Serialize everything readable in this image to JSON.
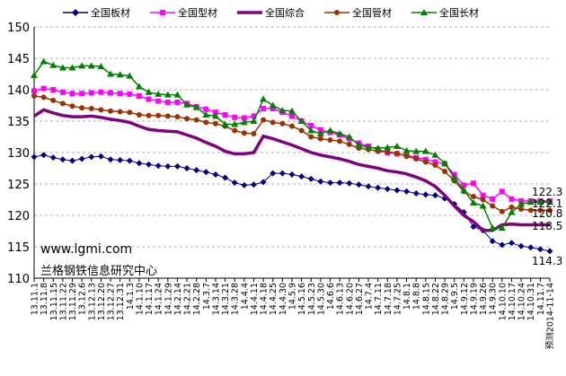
{
  "chart_data": {
    "type": "line",
    "title": "",
    "xlabel": "",
    "ylabel": "",
    "ylim": [
      110,
      150
    ],
    "yticks": [
      110,
      115,
      120,
      125,
      130,
      135,
      140,
      145,
      150
    ],
    "grid": "horizontal dashed",
    "legend": "top",
    "categories": [
      "13.11.1",
      "13.11.8",
      "13.11.15",
      "13.11.22",
      "13.11.29",
      "13.12.6",
      "13.12.13",
      "13.12.20",
      "13.12.27",
      "13.12.31",
      "14.1.3",
      "14.1.10",
      "14.1.17",
      "14.1.24",
      "14.1.29",
      "14.2.14",
      "14.2.21",
      "14.2.28",
      "14.3.7",
      "14.3.14",
      "14.3.21",
      "14.3.28",
      "14.4.4",
      "14.4.11",
      "14.4.18",
      "14.4.25",
      "14.4.30",
      "14.5.9",
      "14.5.16",
      "14.5.23",
      "14.5.30",
      "14.6.6",
      "14.6.13",
      "14.6.20",
      "14.6.27",
      "14.7.4",
      "14.7.11",
      "14.7.18",
      "14.7.25",
      "14.8.1",
      "14.8.8",
      "14.8.15",
      "14.8.22",
      "14.8.29",
      "14.9.5",
      "14.9.12",
      "14.9.19",
      "14.9.26",
      "14.9.30",
      "14.10.10",
      "14.10.17",
      "14.10.24",
      "14.10.31",
      "14.11.7",
      "预测2014-11-14"
    ],
    "series": [
      {
        "name": "全国板材",
        "color": "#000080",
        "marker": "diamond",
        "end_label": "114.3",
        "values": [
          129.3,
          129.6,
          129.2,
          128.9,
          128.7,
          129.0,
          129.3,
          129.4,
          128.9,
          128.8,
          128.7,
          128.3,
          128.1,
          127.9,
          127.8,
          127.8,
          127.5,
          127.2,
          126.9,
          126.5,
          126.0,
          125.2,
          124.8,
          124.9,
          125.3,
          126.7,
          126.7,
          126.5,
          126.2,
          125.8,
          125.4,
          125.2,
          125.2,
          125.1,
          124.9,
          124.6,
          124.4,
          124.2,
          124.0,
          123.8,
          123.5,
          123.3,
          123.2,
          122.7,
          121.8,
          120.5,
          118.2,
          117.6,
          115.9,
          115.3,
          115.6,
          115.1,
          114.9,
          114.6,
          114.3
        ]
      },
      {
        "name": "全国型材",
        "color": "#ff00ff",
        "marker": "square",
        "end_label": "122.3",
        "values": [
          139.8,
          140.2,
          140.0,
          139.6,
          139.4,
          139.4,
          139.5,
          139.6,
          139.5,
          139.4,
          139.3,
          139.0,
          138.5,
          138.2,
          138.0,
          138.0,
          137.8,
          137.3,
          136.9,
          136.4,
          136.0,
          135.6,
          135.5,
          135.8,
          137.0,
          137.0,
          136.4,
          135.8,
          135.0,
          134.3,
          133.6,
          133.2,
          132.8,
          132.2,
          131.5,
          131.0,
          130.5,
          130.0,
          129.8,
          129.6,
          129.2,
          128.9,
          128.5,
          128.2,
          126.5,
          124.8,
          125.1,
          123.2,
          122.6,
          123.8,
          122.6,
          122.3,
          122.3,
          122.3,
          122.3
        ]
      },
      {
        "name": "全国综合",
        "color": "#800080",
        "marker": "none",
        "end_label": "118.5",
        "values": [
          135.8,
          136.8,
          136.3,
          135.9,
          135.7,
          135.7,
          135.8,
          135.6,
          135.3,
          135.1,
          134.8,
          134.2,
          133.7,
          133.5,
          133.4,
          133.3,
          132.8,
          132.3,
          131.6,
          131.0,
          130.2,
          129.8,
          129.8,
          130.0,
          132.6,
          132.2,
          131.7,
          131.2,
          130.6,
          130.0,
          129.6,
          129.3,
          129.0,
          128.6,
          128.1,
          127.8,
          127.5,
          127.1,
          126.9,
          126.6,
          126.1,
          125.5,
          124.6,
          123.2,
          121.5,
          120.0,
          119.0,
          117.6,
          117.6,
          118.5,
          118.6,
          118.5,
          118.5,
          118.5,
          118.5
        ]
      },
      {
        "name": "全国管材",
        "color": "#993300",
        "marker": "circle",
        "end_label": "120.8",
        "values": [
          139.0,
          138.8,
          138.3,
          137.8,
          137.4,
          137.1,
          137.0,
          136.8,
          136.6,
          136.5,
          136.4,
          136.0,
          135.9,
          135.9,
          135.8,
          135.7,
          135.4,
          135.2,
          134.8,
          134.6,
          134.2,
          133.5,
          133.1,
          133.0,
          135.2,
          134.8,
          134.6,
          134.2,
          133.5,
          132.5,
          132.2,
          132.0,
          131.8,
          131.3,
          130.7,
          130.5,
          130.2,
          130.1,
          129.9,
          129.4,
          129.0,
          128.5,
          128.0,
          127.0,
          125.5,
          123.8,
          123.0,
          122.5,
          121.5,
          120.6,
          121.3,
          121.0,
          120.8,
          120.8,
          120.8
        ]
      },
      {
        "name": "全国长材",
        "color": "#008000",
        "marker": "triangle",
        "end_label": "122.1",
        "values": [
          142.3,
          144.5,
          143.9,
          143.5,
          143.5,
          143.8,
          143.8,
          143.7,
          142.5,
          142.4,
          142.2,
          140.5,
          139.6,
          139.3,
          139.2,
          139.2,
          137.6,
          137.2,
          136.0,
          135.8,
          134.5,
          134.5,
          134.8,
          135.0,
          138.5,
          137.5,
          136.7,
          136.6,
          135.0,
          133.5,
          133.0,
          133.5,
          133.0,
          132.5,
          131.2,
          130.8,
          130.7,
          130.8,
          131.0,
          130.3,
          130.2,
          130.2,
          129.6,
          128.3,
          126.0,
          124.0,
          122.0,
          121.5,
          118.0,
          118.0,
          120.5,
          121.8,
          122.1,
          122.1,
          122.1
        ]
      }
    ]
  },
  "watermark": {
    "url": "www.lgmi.com",
    "org": "兰格钢铁信息研究中心"
  }
}
